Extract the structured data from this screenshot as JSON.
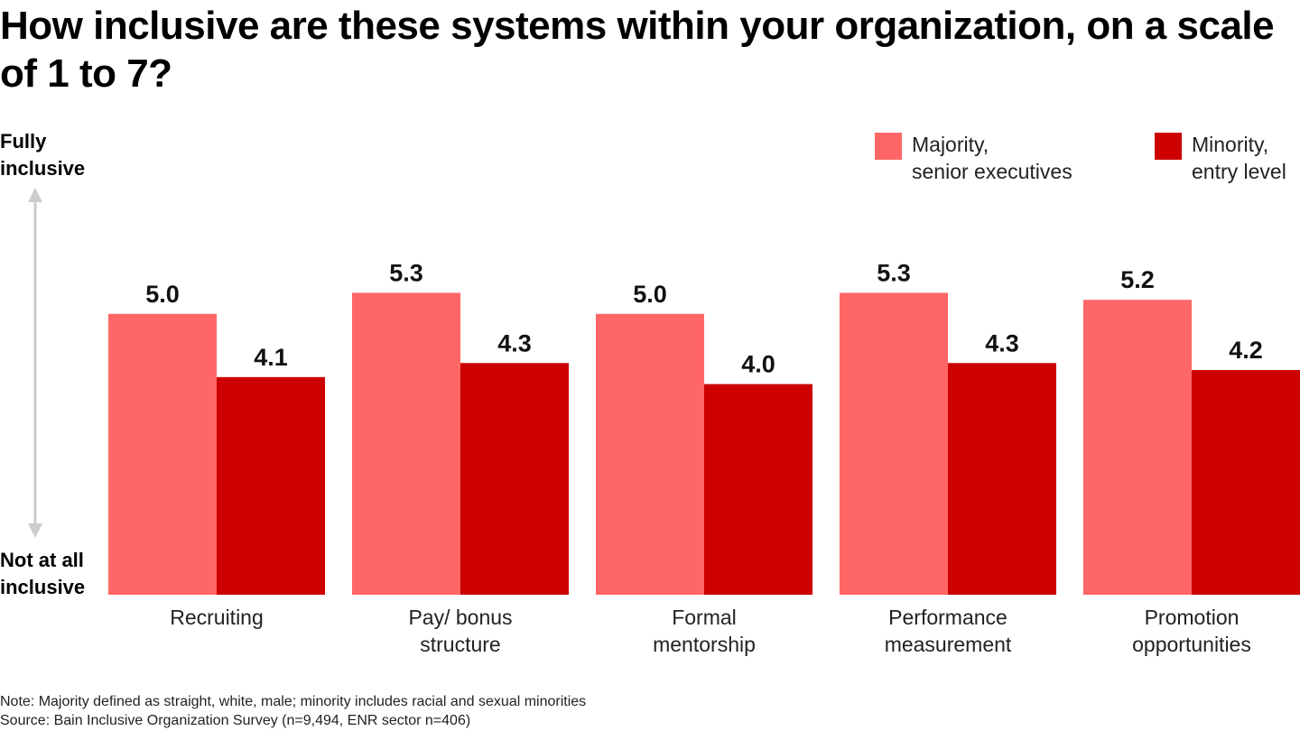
{
  "chart_data": {
    "type": "bar",
    "title": "How inclusive are these systems within your organization, on a scale of 1 to 7?",
    "categories": [
      "Recruiting",
      "Pay/ bonus\nstructure",
      "Formal\nmentorship",
      "Performance\nmeasurement",
      "Promotion\nopportunities"
    ],
    "series": [
      {
        "name": "Majority,\nsenior executives",
        "values": [
          5.0,
          5.3,
          5.0,
          5.3,
          5.2
        ],
        "color": "#ff6666"
      },
      {
        "name": "Minority,\nentry level",
        "values": [
          4.1,
          4.3,
          4.0,
          4.3,
          4.2
        ],
        "color": "#cc0000"
      }
    ],
    "value_format": "one decimal",
    "ylim": [
      1,
      7
    ],
    "y_axis_top_label": "Fully\ninclusive",
    "y_axis_bottom_label": "Not at all\ninclusive",
    "y_axis_arrow_color": "#cccccc",
    "grid": false,
    "legend_position": "top-right",
    "note": "Note: Majority defined as straight, white, male; minority includes racial and sexual minorities",
    "source": "Source: Bain Inclusive Organization Survey (n=9,494, ENR sector n=406)"
  }
}
